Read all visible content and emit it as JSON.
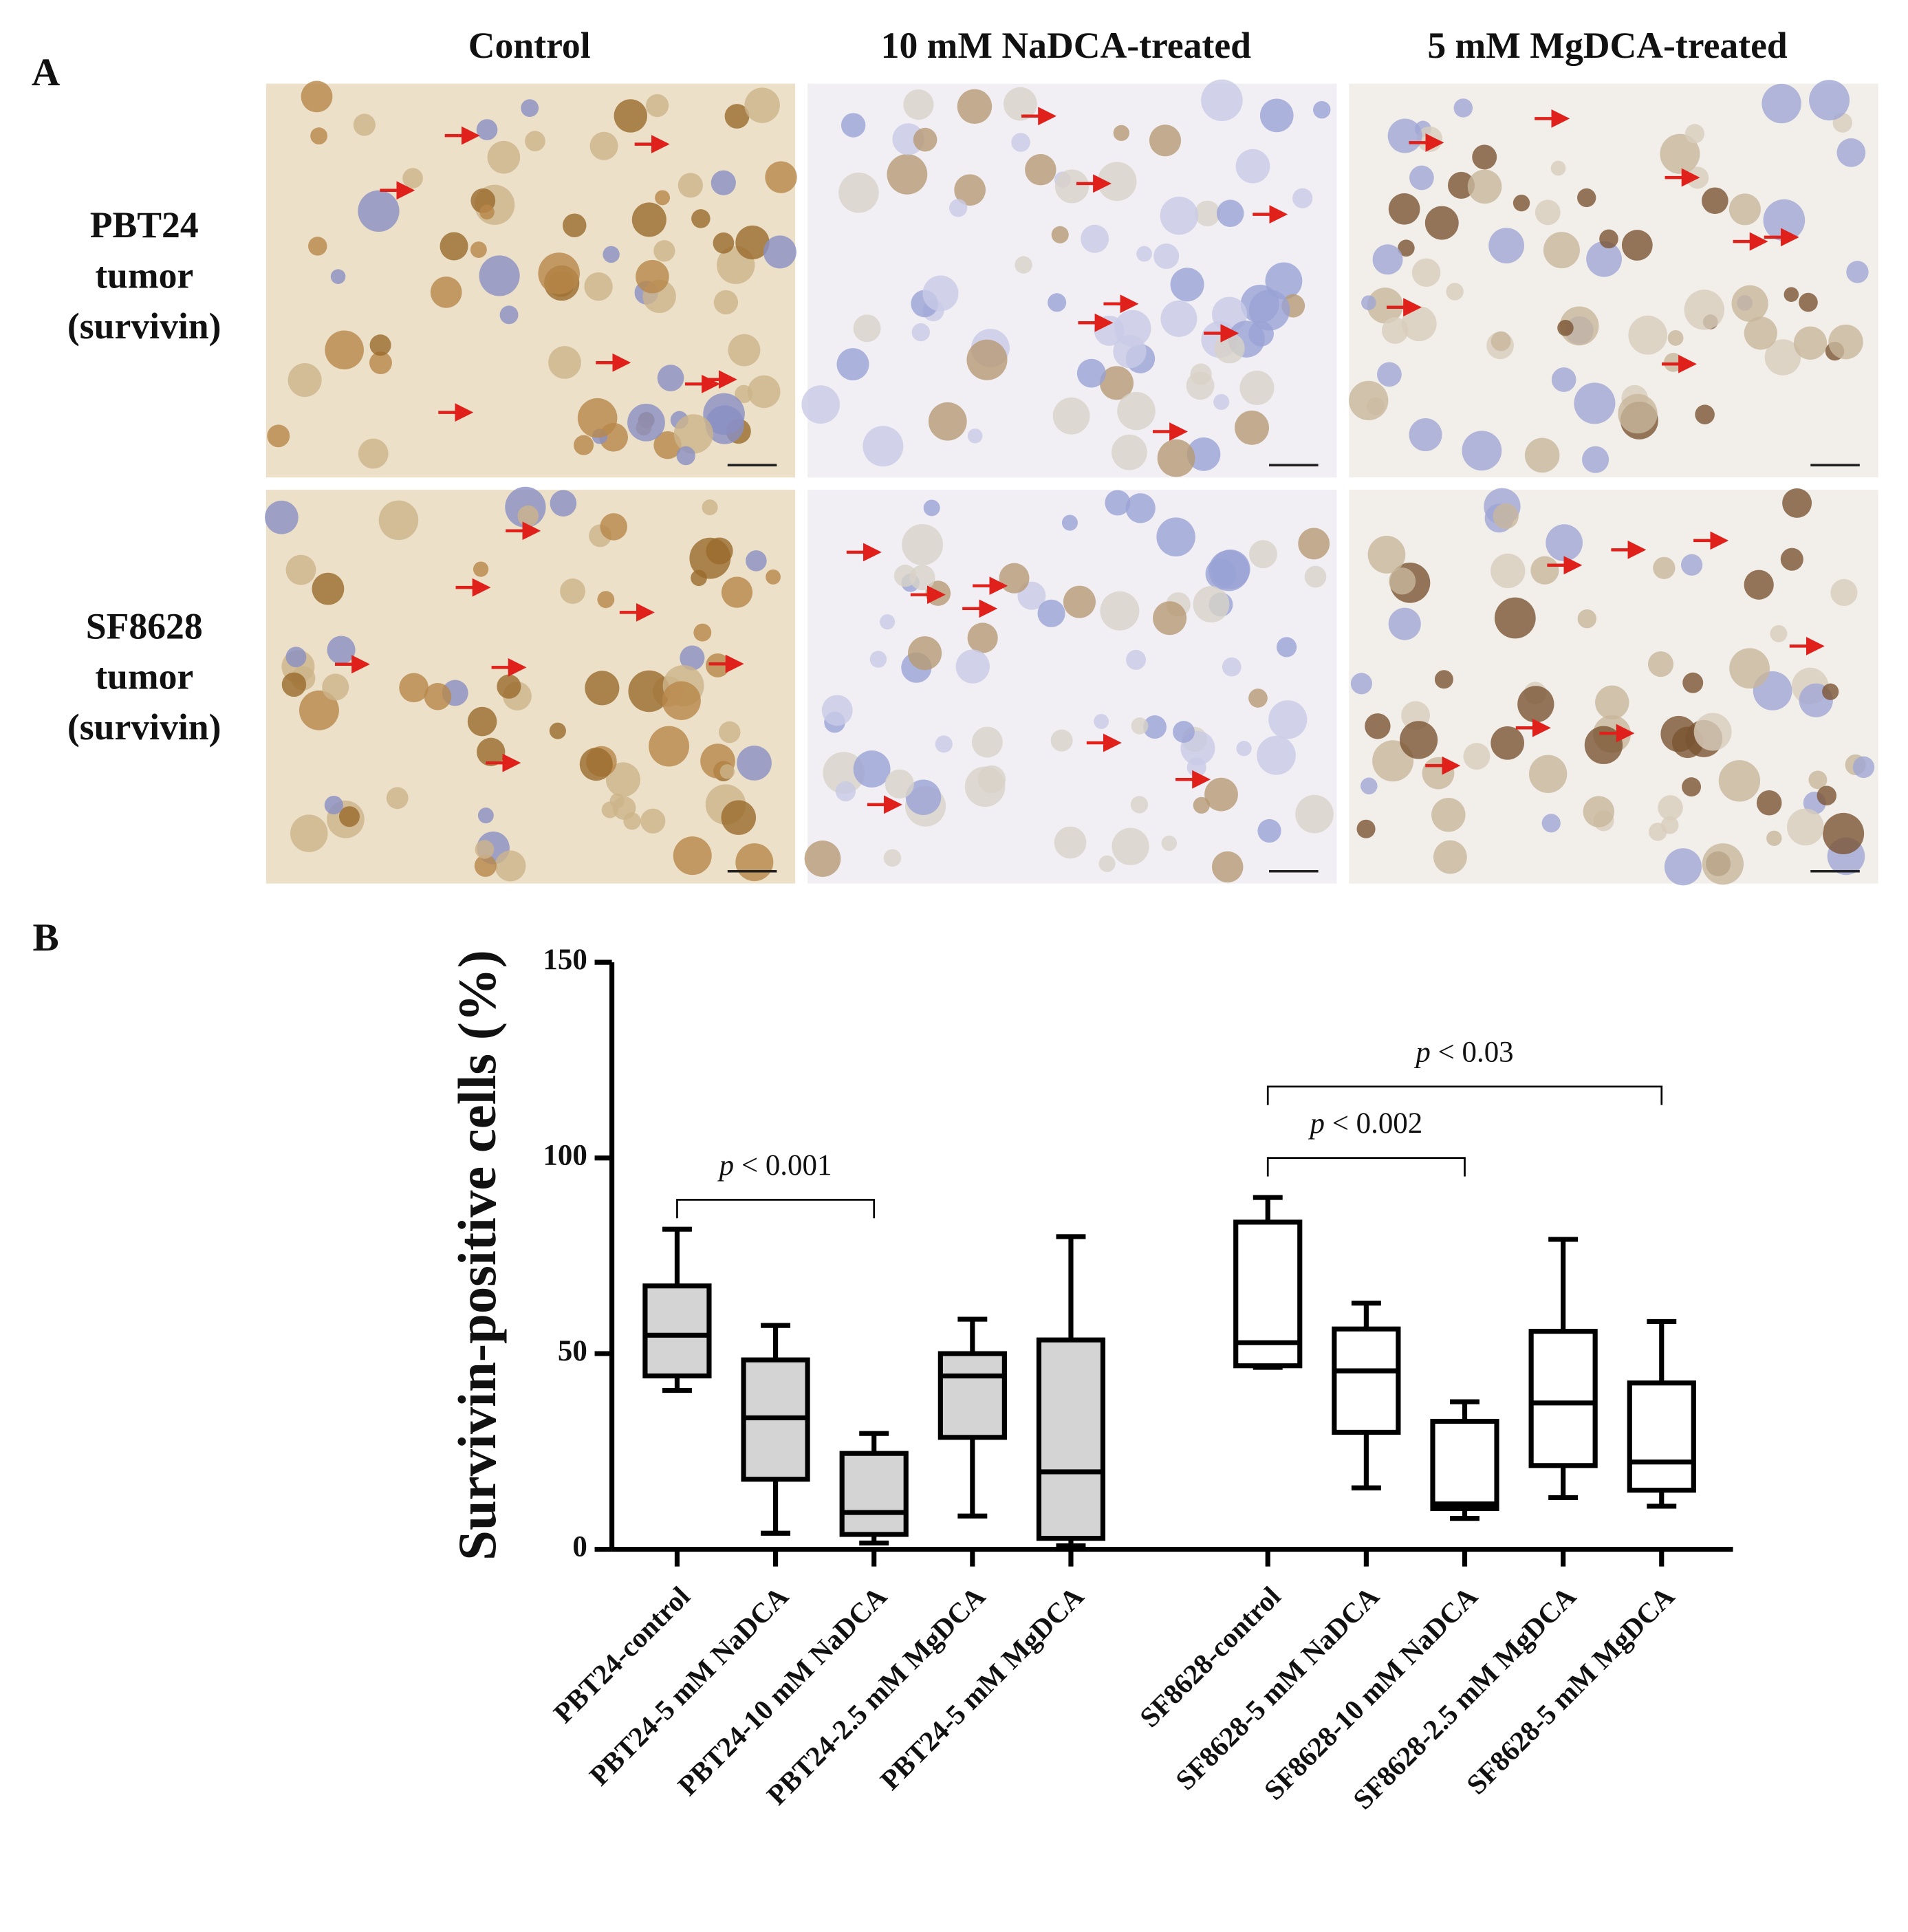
{
  "panel_a": {
    "label": "A",
    "columns": [
      "Control",
      "10 mM NaDCA-treated",
      "5 mM MgDCA-treated"
    ],
    "rows": [
      [
        "PBT24",
        "tumor",
        "(survivin)"
      ],
      [
        "SF8628",
        "tumor",
        "(survivin)"
      ]
    ]
  },
  "panel_b_label": "B",
  "chart_data": {
    "type": "box",
    "y_label": "Survivin-positive cells (%)",
    "categories": [
      "PBT24-control",
      "PBT24-5 mM NaDCA",
      "PBT24-10 mM NaDCA",
      "PBT24-2.5 mM MgDCA",
      "PBT24-5 mM MgDCA",
      "SF8628-control",
      "SF8628-5 mM NaDCA",
      "SF8628-10 mM NaDCA",
      "SF8628-2.5 mM MgDCA",
      "SF8628-5 mM MgDCA"
    ],
    "values": [
      {
        "min": 40.6,
        "q1": 44.3,
        "median": 54.7,
        "q3": 67.3,
        "max": 81.8
      },
      {
        "min": 4.1,
        "q1": 17.9,
        "median": 33.6,
        "q3": 48.4,
        "max": 57.2
      },
      {
        "min": 1.6,
        "q1": 3.8,
        "median": 9.4,
        "q3": 24.5,
        "max": 29.6
      },
      {
        "min": 8.5,
        "q1": 28.6,
        "median": 44.3,
        "q3": 50,
        "max": 58.8
      },
      {
        "min": 0.9,
        "q1": 2.8,
        "median": 19.8,
        "q3": 53.5,
        "max": 79.9
      },
      {
        "min": 46.5,
        "q1": 46.9,
        "median": 52.8,
        "q3": 83.6,
        "max": 89.9
      },
      {
        "min": 15.7,
        "q1": 29.9,
        "median": 45.6,
        "q3": 56.3,
        "max": 62.9
      },
      {
        "min": 7.9,
        "q1": 10.4,
        "median": 11.6,
        "q3": 32.7,
        "max": 37.7
      },
      {
        "min": 13.2,
        "q1": 21.4,
        "median": 37.4,
        "q3": 55.7,
        "max": 79.2
      },
      {
        "min": 11,
        "q1": 15.1,
        "median": 22.3,
        "q3": 42.5,
        "max": 58.2
      }
    ],
    "fills": [
      "#d4d4d4",
      "#d4d4d4",
      "#d4d4d4",
      "#d4d4d4",
      "#d4d4d4",
      "#ffffff",
      "#ffffff",
      "#ffffff",
      "#ffffff",
      "#ffffff"
    ],
    "ylim": [
      0,
      150
    ],
    "yticks": [
      0,
      50,
      100,
      150
    ],
    "annotations": [
      "p < 0.001",
      "p < 0.002",
      "p < 0.03"
    ]
  }
}
